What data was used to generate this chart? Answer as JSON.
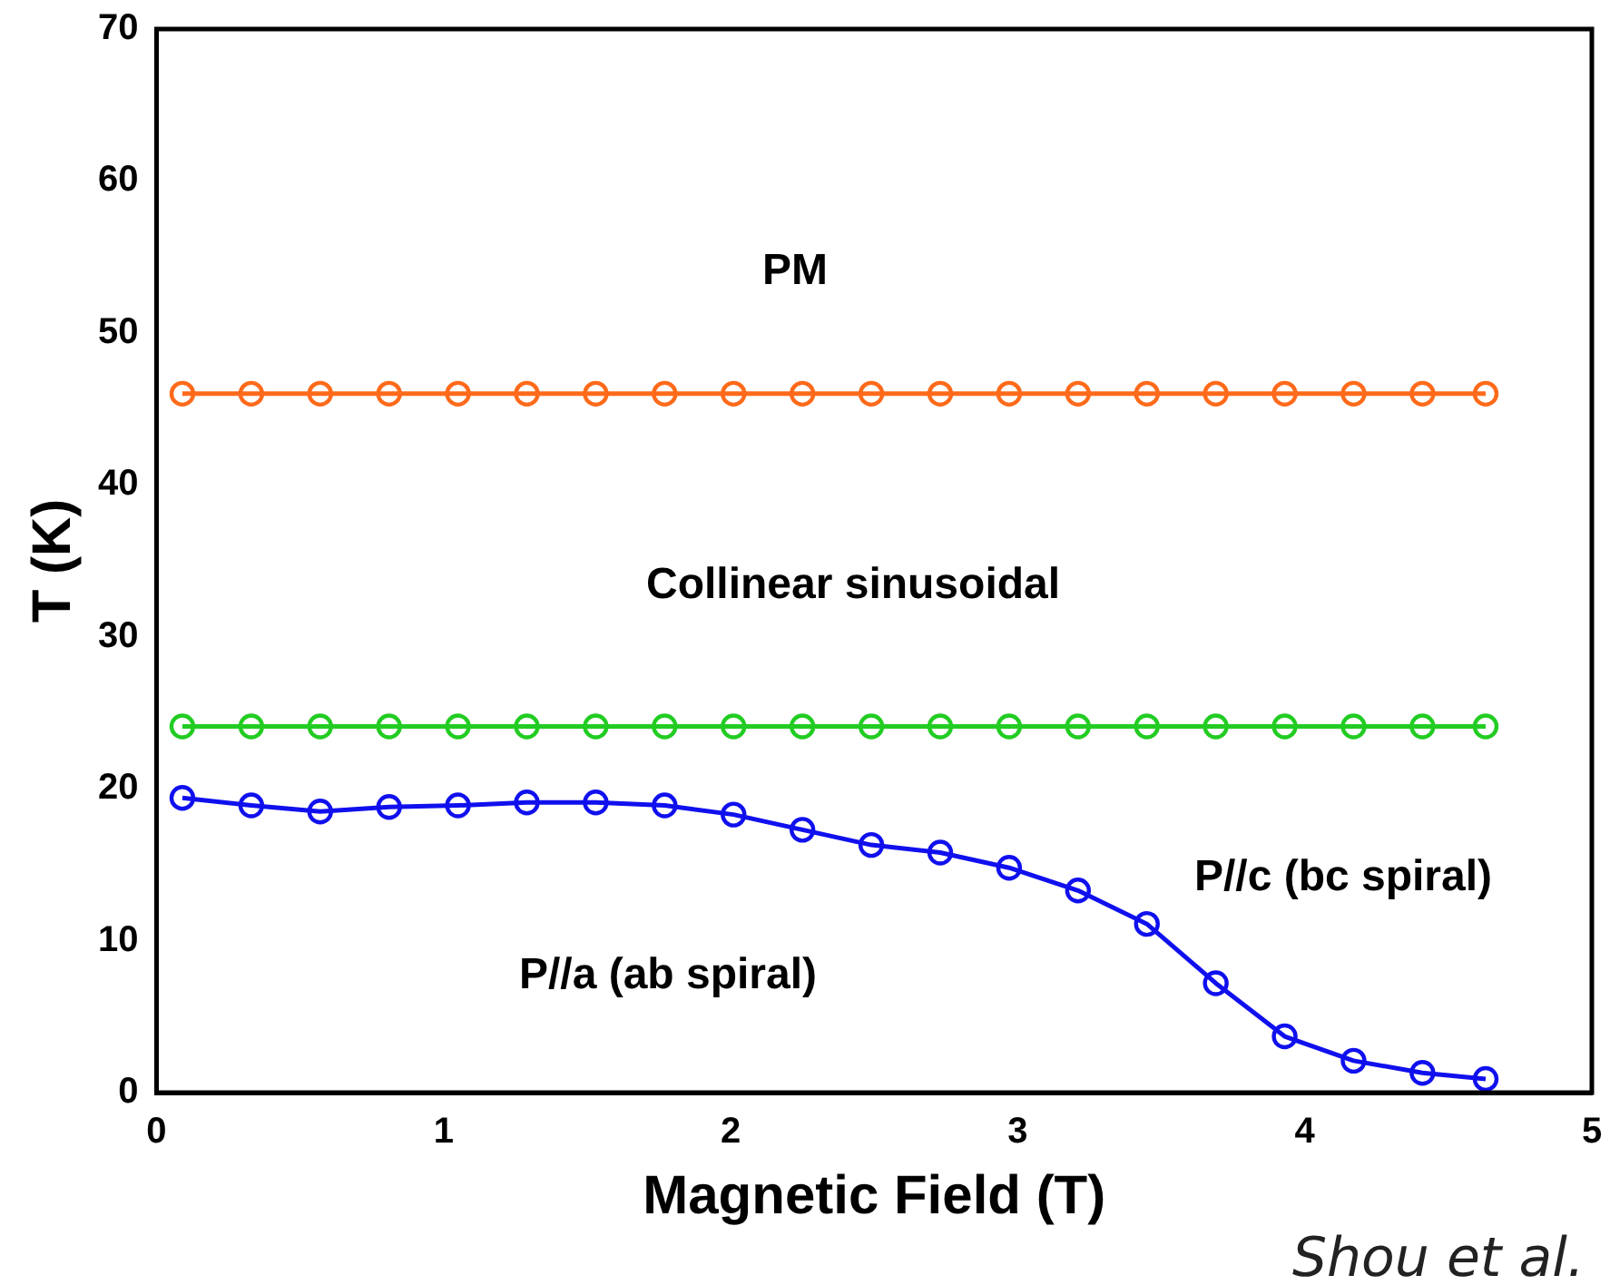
{
  "chart_data": {
    "type": "line",
    "xlabel": "Magnetic Field (T)",
    "ylabel": "T (K)",
    "x": [
      0.09,
      0.33,
      0.57,
      0.81,
      1.05,
      1.29,
      1.53,
      1.77,
      2.01,
      2.25,
      2.49,
      2.73,
      2.97,
      3.21,
      3.45,
      3.69,
      3.93,
      4.17,
      4.41,
      4.63
    ],
    "series": [
      {
        "color": "#ff6a1a",
        "values": [
          46,
          46,
          46,
          46,
          46,
          46,
          46,
          46,
          46,
          46,
          46,
          46,
          46,
          46,
          46,
          46,
          46,
          46,
          46,
          46
        ]
      },
      {
        "color": "#22cc22",
        "values": [
          24.1,
          24.1,
          24.1,
          24.1,
          24.1,
          24.1,
          24.1,
          24.1,
          24.1,
          24.1,
          24.1,
          24.1,
          24.1,
          24.1,
          24.1,
          24.1,
          24.1,
          24.1,
          24.1,
          24.1
        ]
      },
      {
        "color": "#1010ee",
        "values": [
          19.4,
          18.9,
          18.5,
          18.8,
          18.9,
          19.1,
          19.1,
          18.9,
          18.3,
          17.3,
          16.3,
          15.8,
          14.8,
          13.3,
          11.1,
          7.2,
          3.7,
          2.1,
          1.3,
          0.9
        ]
      }
    ],
    "xlim": [
      0,
      5
    ],
    "xticks": [
      0,
      1,
      2,
      3,
      4,
      5
    ],
    "ylim": [
      0,
      70
    ],
    "yticks": [
      0,
      10,
      20,
      30,
      40,
      50,
      60,
      70
    ],
    "grid": false,
    "legend": false,
    "marker": "circle",
    "line_style": "solid",
    "annotations": [
      "PM",
      "Collinear sinusoidal",
      "P//c (bc spiral)",
      "P//a (ab spiral)",
      "Shou et al."
    ]
  }
}
